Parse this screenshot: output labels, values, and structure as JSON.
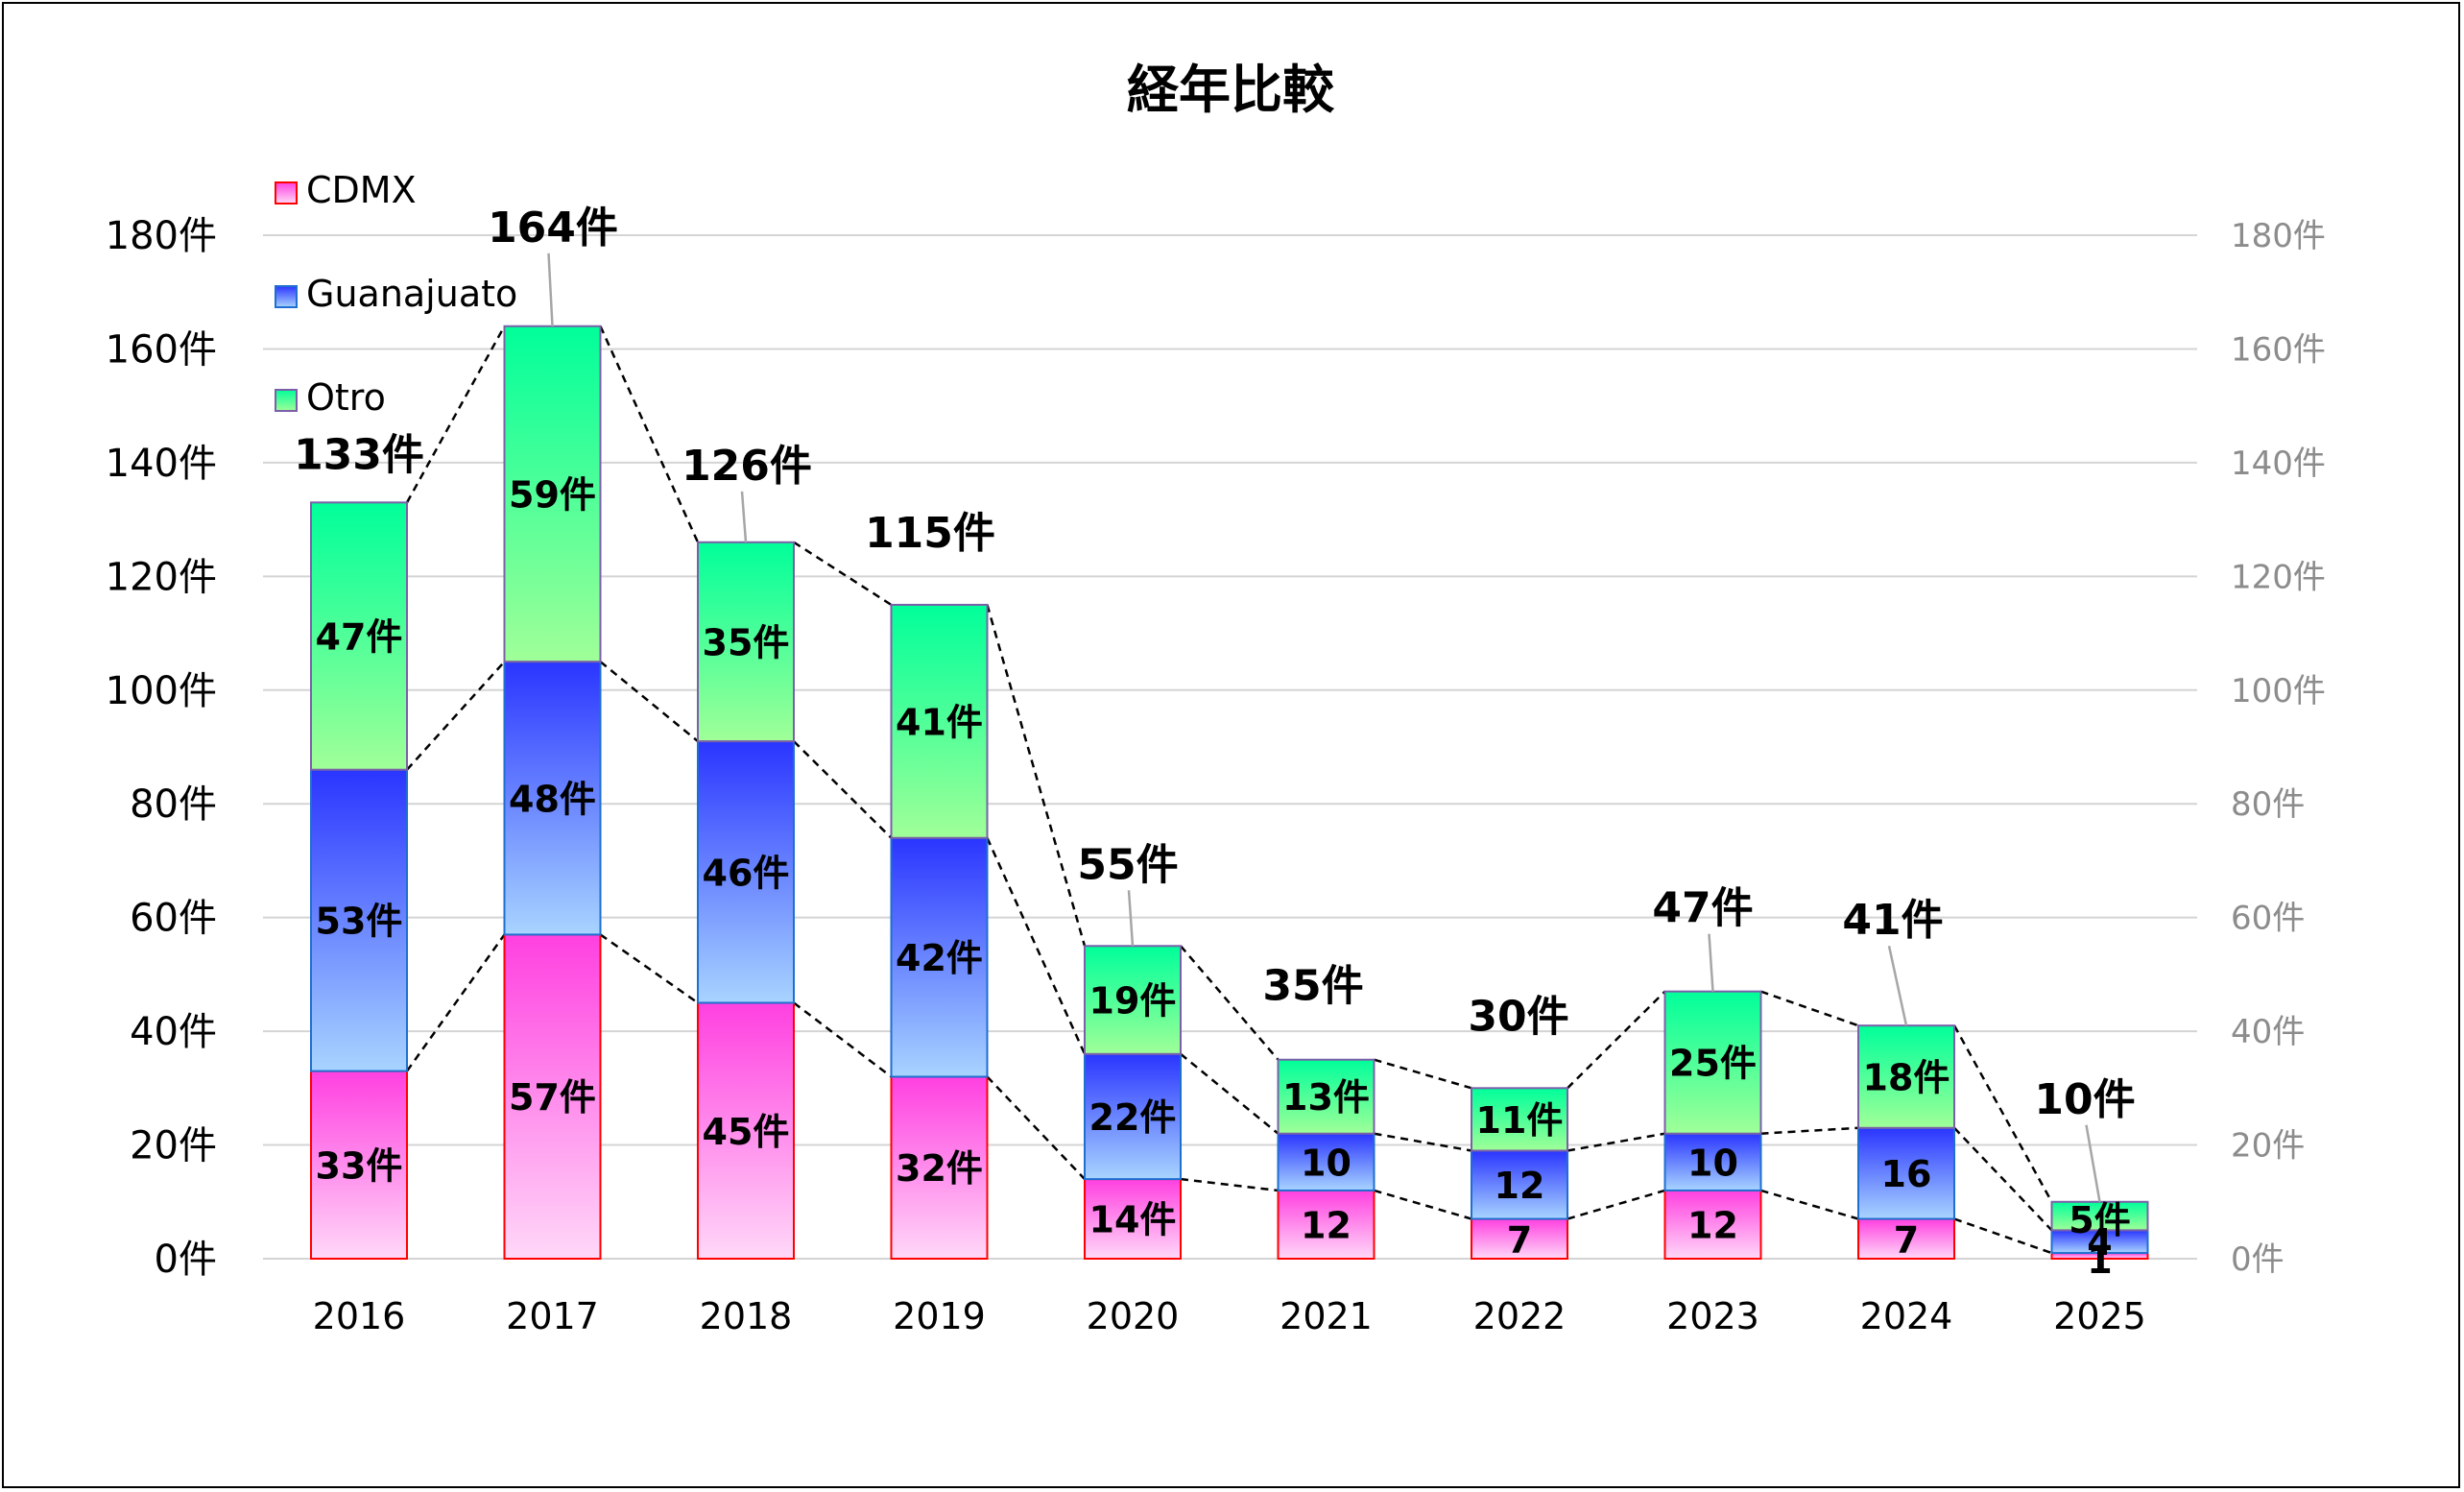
{
  "chart_data": {
    "type": "bar",
    "stacked": true,
    "title": "経年比較",
    "categories": [
      "2016",
      "2017",
      "2018",
      "2019",
      "2020",
      "2021",
      "2022",
      "2023",
      "2024",
      "2025"
    ],
    "series": [
      {
        "name": "CDMX",
        "values": [
          33,
          57,
          45,
          32,
          14,
          12,
          7,
          12,
          7,
          1
        ],
        "labels": [
          "33件",
          "57件",
          "45件",
          "32件",
          "14件",
          "12",
          "7",
          "12",
          "7",
          "1"
        ],
        "color_top": "#ff40e0",
        "color_bottom": "#ffd8f8",
        "border": "#ff0000"
      },
      {
        "name": "Guanajuato",
        "values": [
          53,
          48,
          46,
          42,
          22,
          10,
          12,
          10,
          16,
          4
        ],
        "labels": [
          "53件",
          "48件",
          "46件",
          "42件",
          "22件",
          "10",
          "12",
          "10",
          "16",
          "4"
        ],
        "color_top": "#2a35ff",
        "color_bottom": "#a8d4ff",
        "border": "#1f6fd0"
      },
      {
        "name": "Otro",
        "values": [
          47,
          59,
          35,
          41,
          19,
          13,
          11,
          25,
          18,
          5
        ],
        "labels": [
          "47件",
          "59件",
          "35件",
          "41件",
          "19件",
          "13件",
          "11件",
          "25件",
          "18件",
          "5件"
        ],
        "color_top": "#00ff9a",
        "color_bottom": "#a0ff98",
        "border": "#7a60a8"
      }
    ],
    "totals": [
      133,
      164,
      126,
      115,
      55,
      35,
      30,
      47,
      41,
      10
    ],
    "total_labels": [
      "133件",
      "164件",
      "126件",
      "115件",
      "55件",
      "35件",
      "30件",
      "47件",
      "41件",
      "10件"
    ],
    "ylim": [
      0,
      180
    ],
    "yticks": [
      0,
      20,
      40,
      60,
      80,
      100,
      120,
      140,
      160,
      180
    ],
    "ytick_labels": [
      "0件",
      "20件",
      "40件",
      "60件",
      "80件",
      "100件",
      "120件",
      "140件",
      "160件",
      "180件"
    ],
    "secondary_ytick_labels": [
      "0件",
      "20件",
      "40件",
      "60件",
      "80件",
      "100件",
      "120件",
      "140件",
      "160件",
      "180件"
    ],
    "grid": true,
    "legend_position": "top-left",
    "series_lines": "dashed"
  }
}
